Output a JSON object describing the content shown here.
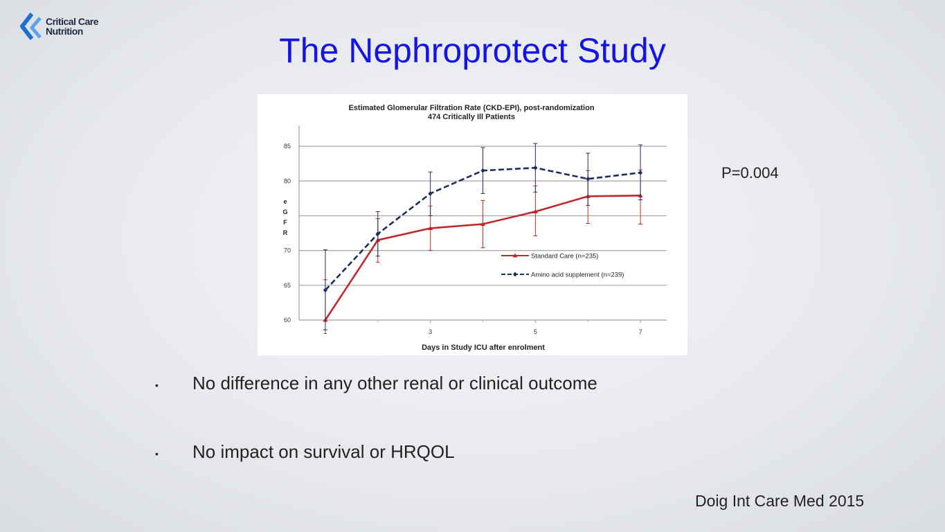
{
  "logo": {
    "line1": "Critical Care",
    "line2": "Nutrition",
    "color": "#1f6fd1"
  },
  "slide": {
    "title": "The Nephroprotect Study",
    "pvalue": "P=0.004",
    "bullets": [
      {
        "symbol": "•",
        "text": "No difference in any other renal or clinical outcome"
      },
      {
        "symbol": "•",
        "text": "No impact on survival or HRQOL"
      }
    ],
    "citation": "Doig Int Care Med 2015"
  },
  "chart_data": {
    "type": "line",
    "title": "Estimated Glomerular Filtration Rate (CKD-EPI), post-randomization",
    "subtitle": "474 Critically Ill Patients",
    "xlabel": "Days in Study ICU after enrolment",
    "ylabel_letters": [
      "e",
      "G",
      "F",
      "R"
    ],
    "ylim": [
      60,
      88
    ],
    "xlim": [
      0.5,
      7.5
    ],
    "yticks": [
      60,
      65,
      70,
      80,
      85
    ],
    "ygrid": [
      65,
      70,
      75,
      80,
      85
    ],
    "xticks": [
      1,
      3,
      5,
      7
    ],
    "x": [
      1,
      2,
      3,
      4,
      5,
      6,
      7
    ],
    "grid": true,
    "legend_position": "lower-right",
    "series": [
      {
        "name": "Standard Care (n=235)",
        "color": "#c0282d",
        "dash": "solid",
        "marker": "triangle",
        "values": [
          60.0,
          71.5,
          73.2,
          73.8,
          75.6,
          77.8,
          77.9
        ],
        "err_low": [
          60.0,
          68.3,
          70.0,
          70.4,
          72.1,
          73.9,
          73.8
        ],
        "err_high": [
          65.8,
          74.6,
          76.4,
          77.2,
          79.3,
          81.5,
          81.6
        ]
      },
      {
        "name": "Amino acid supplement (n=239)",
        "color": "#1f2d5c",
        "dash": "dashed",
        "marker": "diamond",
        "values": [
          64.3,
          72.4,
          78.2,
          81.5,
          81.9,
          80.3,
          81.2
        ],
        "err_low": [
          58.6,
          69.2,
          75.0,
          78.2,
          78.4,
          76.5,
          77.3
        ],
        "err_high": [
          70.1,
          75.6,
          81.3,
          84.8,
          85.4,
          84.0,
          85.2
        ]
      }
    ]
  }
}
